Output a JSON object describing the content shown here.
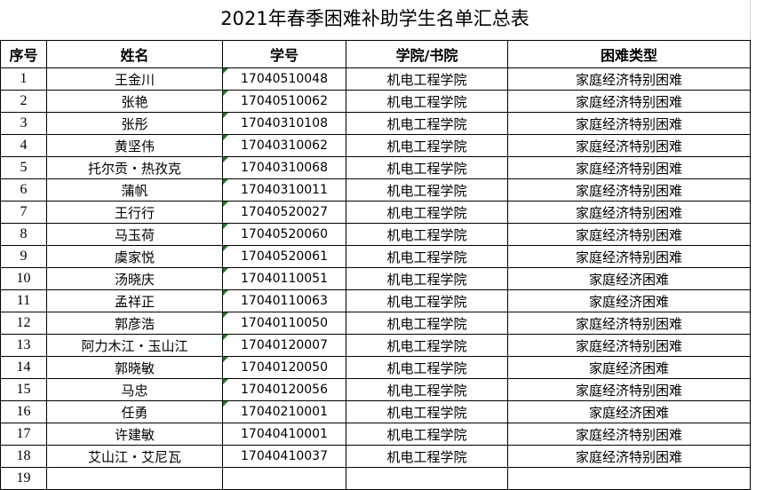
{
  "title": "2021年春季困难补助学生名单汇总表",
  "headers": [
    "序号",
    "姓名",
    "学号",
    "学院/书院",
    "困难类型"
  ],
  "rows": [
    {
      "no": "1",
      "name": "王金川",
      "id": "17040510048",
      "college": "机电工程学院",
      "type": "家庭经济特别困难",
      "flag": true
    },
    {
      "no": "2",
      "name": "张艳",
      "id": "17040510062",
      "college": "机电工程学院",
      "type": "家庭经济特别困难",
      "flag": true
    },
    {
      "no": "3",
      "name": "张彤",
      "id": "17040310108",
      "college": "机电工程学院",
      "type": "家庭经济特别困难",
      "flag": true
    },
    {
      "no": "4",
      "name": "黄坚伟",
      "id": "17040310062",
      "college": "机电工程学院",
      "type": "家庭经济特别困难",
      "flag": true
    },
    {
      "no": "5",
      "name": "托尔贡・热孜克",
      "id": "17040310068",
      "college": "机电工程学院",
      "type": "家庭经济特别困难",
      "flag": true
    },
    {
      "no": "6",
      "name": "蒲帆",
      "id": "17040310011",
      "college": "机电工程学院",
      "type": "家庭经济特别困难",
      "flag": true
    },
    {
      "no": "7",
      "name": "王行行",
      "id": "17040520027",
      "college": "机电工程学院",
      "type": "家庭经济特别困难",
      "flag": true
    },
    {
      "no": "8",
      "name": "马玉荷",
      "id": "17040520060",
      "college": "机电工程学院",
      "type": "家庭经济特别困难",
      "flag": true
    },
    {
      "no": "9",
      "name": "虞家悦",
      "id": "17040520061",
      "college": "机电工程学院",
      "type": "家庭经济特别困难",
      "flag": true
    },
    {
      "no": "10",
      "name": "汤晓庆",
      "id": "17040110051",
      "college": "机电工程学院",
      "type": "家庭经济困难",
      "flag": true
    },
    {
      "no": "11",
      "name": "孟祥正",
      "id": "17040110063",
      "college": "机电工程学院",
      "type": "家庭经济困难",
      "flag": true
    },
    {
      "no": "12",
      "name": "郭彦浩",
      "id": "17040110050",
      "college": "机电工程学院",
      "type": "家庭经济特别困难",
      "flag": true
    },
    {
      "no": "13",
      "name": "阿力木江・玉山江",
      "id": "17040120007",
      "college": "机电工程学院",
      "type": "家庭经济特别困难",
      "flag": true
    },
    {
      "no": "14",
      "name": "郭晓敏",
      "id": "17040120050",
      "college": "机电工程学院",
      "type": "家庭经济困难",
      "flag": true
    },
    {
      "no": "15",
      "name": "马忠",
      "id": "17040120056",
      "college": "机电工程学院",
      "type": "家庭经济特别困难",
      "flag": true
    },
    {
      "no": "16",
      "name": "任勇",
      "id": "17040210001",
      "college": "机电工程学院",
      "type": "家庭经济困难",
      "flag": true
    },
    {
      "no": "17",
      "name": "许建敏",
      "id": "17040410001",
      "college": "机电工程学院",
      "type": "家庭经济特别困难",
      "flag": false
    },
    {
      "no": "18",
      "name": "艾山江・艾尼瓦",
      "id": "17040410037",
      "college": "机电工程学院",
      "type": "家庭经济特别困难",
      "flag": false
    },
    {
      "no": "19",
      "name": "",
      "id": "",
      "college": "",
      "type": "",
      "flag": false
    }
  ]
}
